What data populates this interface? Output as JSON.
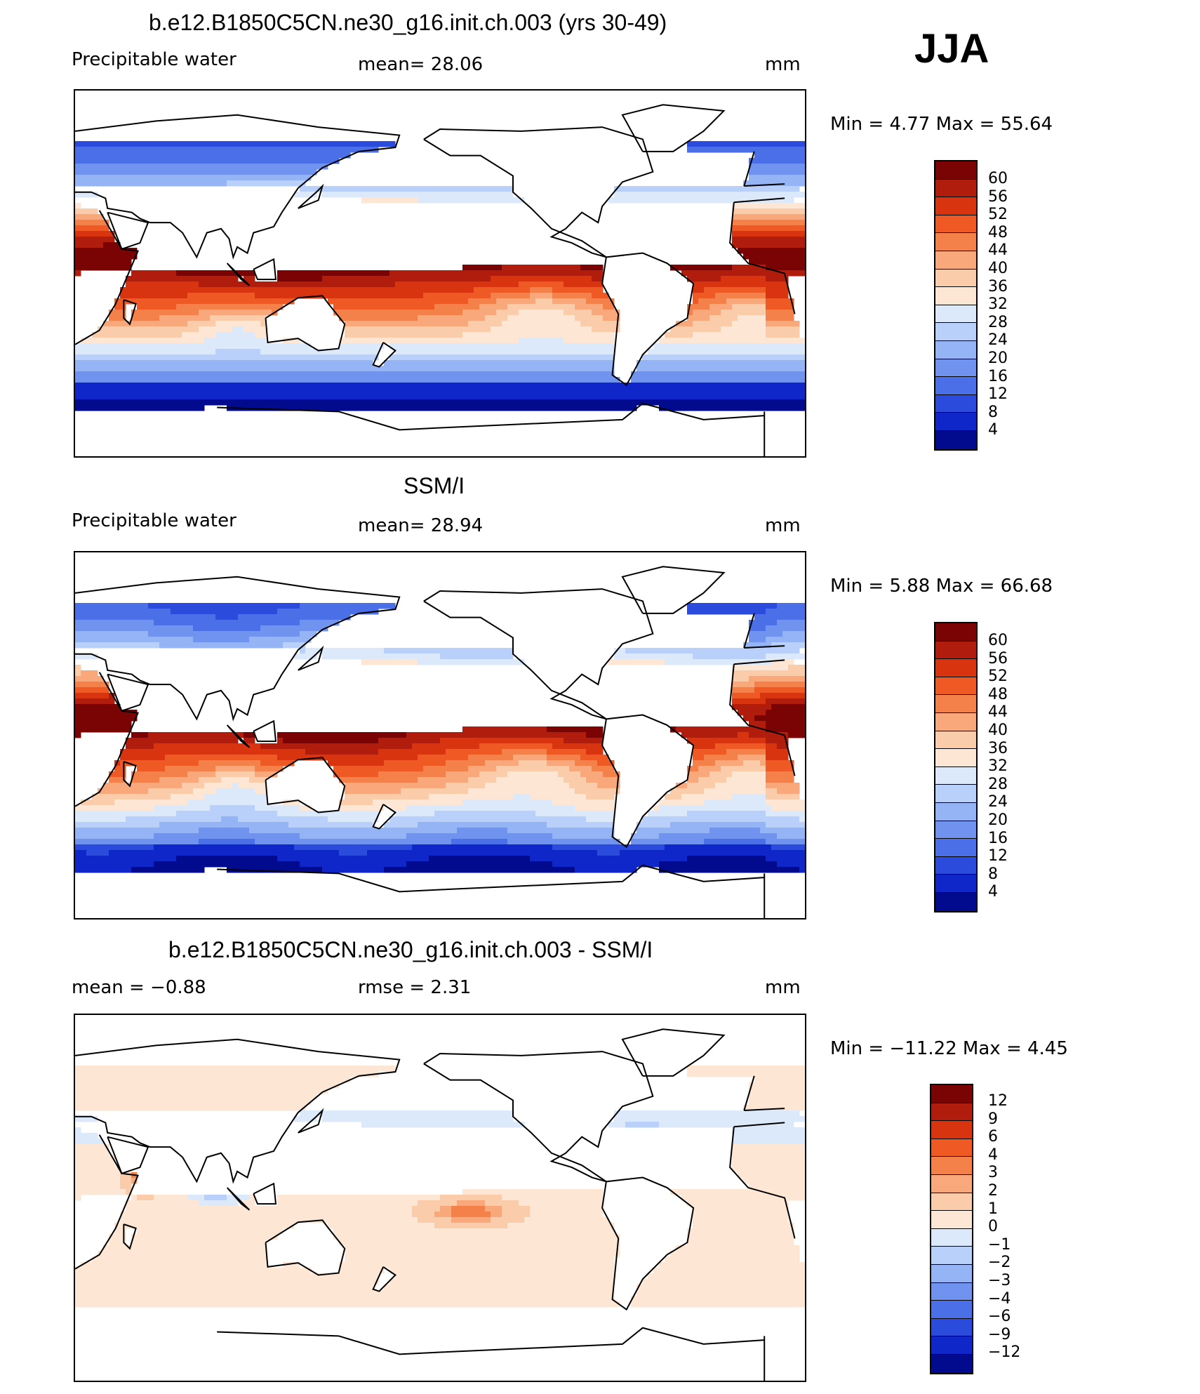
{
  "season": "JJA",
  "panels": [
    {
      "title": "b.e12.B1850C5CN.ne30_g16.init.ch.003 (yrs 30-49)",
      "left_label": "Precipitable  water",
      "center_label": "mean=   28.06",
      "units": "mm",
      "minmax": "Min  =     4.77  Max  =    55.64",
      "colorbar_labels": [
        "60",
        "56",
        "52",
        "48",
        "44",
        "40",
        "36",
        "32",
        "28",
        "24",
        "20",
        "16",
        "12",
        "8",
        "4"
      ],
      "field": "model"
    },
    {
      "title": "SSM/I",
      "left_label": "Precipitable  water",
      "center_label": "mean=   28.94",
      "units": "mm",
      "minmax": "Min  =     5.88  Max  =    66.68",
      "colorbar_labels": [
        "60",
        "56",
        "52",
        "48",
        "44",
        "40",
        "36",
        "32",
        "28",
        "24",
        "20",
        "16",
        "12",
        "8",
        "4"
      ],
      "field": "obs"
    },
    {
      "title": "b.e12.B1850C5CN.ne30_g16.init.ch.003 - SSM/I",
      "left_label": "mean  =    −0.88",
      "center_label": "rmse  =     2.31",
      "units": "mm",
      "minmax": "Min  =  −11.22  Max  =     4.45",
      "colorbar_labels": [
        "12",
        "9",
        "6",
        "4",
        "3",
        "2",
        "1",
        "0",
        "−1",
        "−2",
        "−3",
        "−4",
        "−6",
        "−9",
        "−12"
      ],
      "field": "diff"
    }
  ],
  "colors": {
    "scale": [
      "#7a0403",
      "#b01d0c",
      "#d93410",
      "#ef5a24",
      "#f4804a",
      "#f8a87a",
      "#fbccaa",
      "#fde7d4",
      "#dbe9fb",
      "#b9d1fa",
      "#94b4f6",
      "#6f93ef",
      "#4a6fe6",
      "#2a4bdb",
      "#0f26c8",
      "#020b8d"
    ],
    "land": "#ffffff",
    "coast": "#000000"
  }
}
